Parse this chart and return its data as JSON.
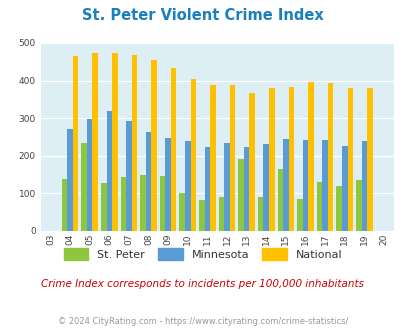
{
  "title": "St. Peter Violent Crime Index",
  "years": [
    2003,
    2004,
    2005,
    2006,
    2007,
    2008,
    2009,
    2010,
    2011,
    2012,
    2013,
    2014,
    2015,
    2016,
    2017,
    2018,
    2019,
    2020
  ],
  "st_peter": [
    0,
    138,
    235,
    128,
    143,
    148,
    147,
    102,
    82,
    90,
    192,
    90,
    165,
    85,
    131,
    120,
    135,
    0
  ],
  "minnesota": [
    0,
    270,
    298,
    318,
    292,
    264,
    248,
    239,
    224,
    235,
    224,
    231,
    244,
    243,
    241,
    225,
    238,
    0
  ],
  "national": [
    0,
    465,
    473,
    474,
    468,
    455,
    432,
    405,
    388,
    388,
    368,
    379,
    384,
    397,
    394,
    381,
    380,
    0
  ],
  "st_peter_color": "#8dc63f",
  "minnesota_color": "#5b9bd5",
  "national_color": "#ffc000",
  "bg_color": "#ddeef5",
  "ylim": [
    0,
    500
  ],
  "yticks": [
    0,
    100,
    200,
    300,
    400,
    500
  ],
  "subtitle": "Crime Index corresponds to incidents per 100,000 inhabitants",
  "footer": "© 2024 CityRating.com - https://www.cityrating.com/crime-statistics/",
  "title_color": "#1a7fbf",
  "subtitle_color": "#cc0000",
  "footer_color": "#999999"
}
